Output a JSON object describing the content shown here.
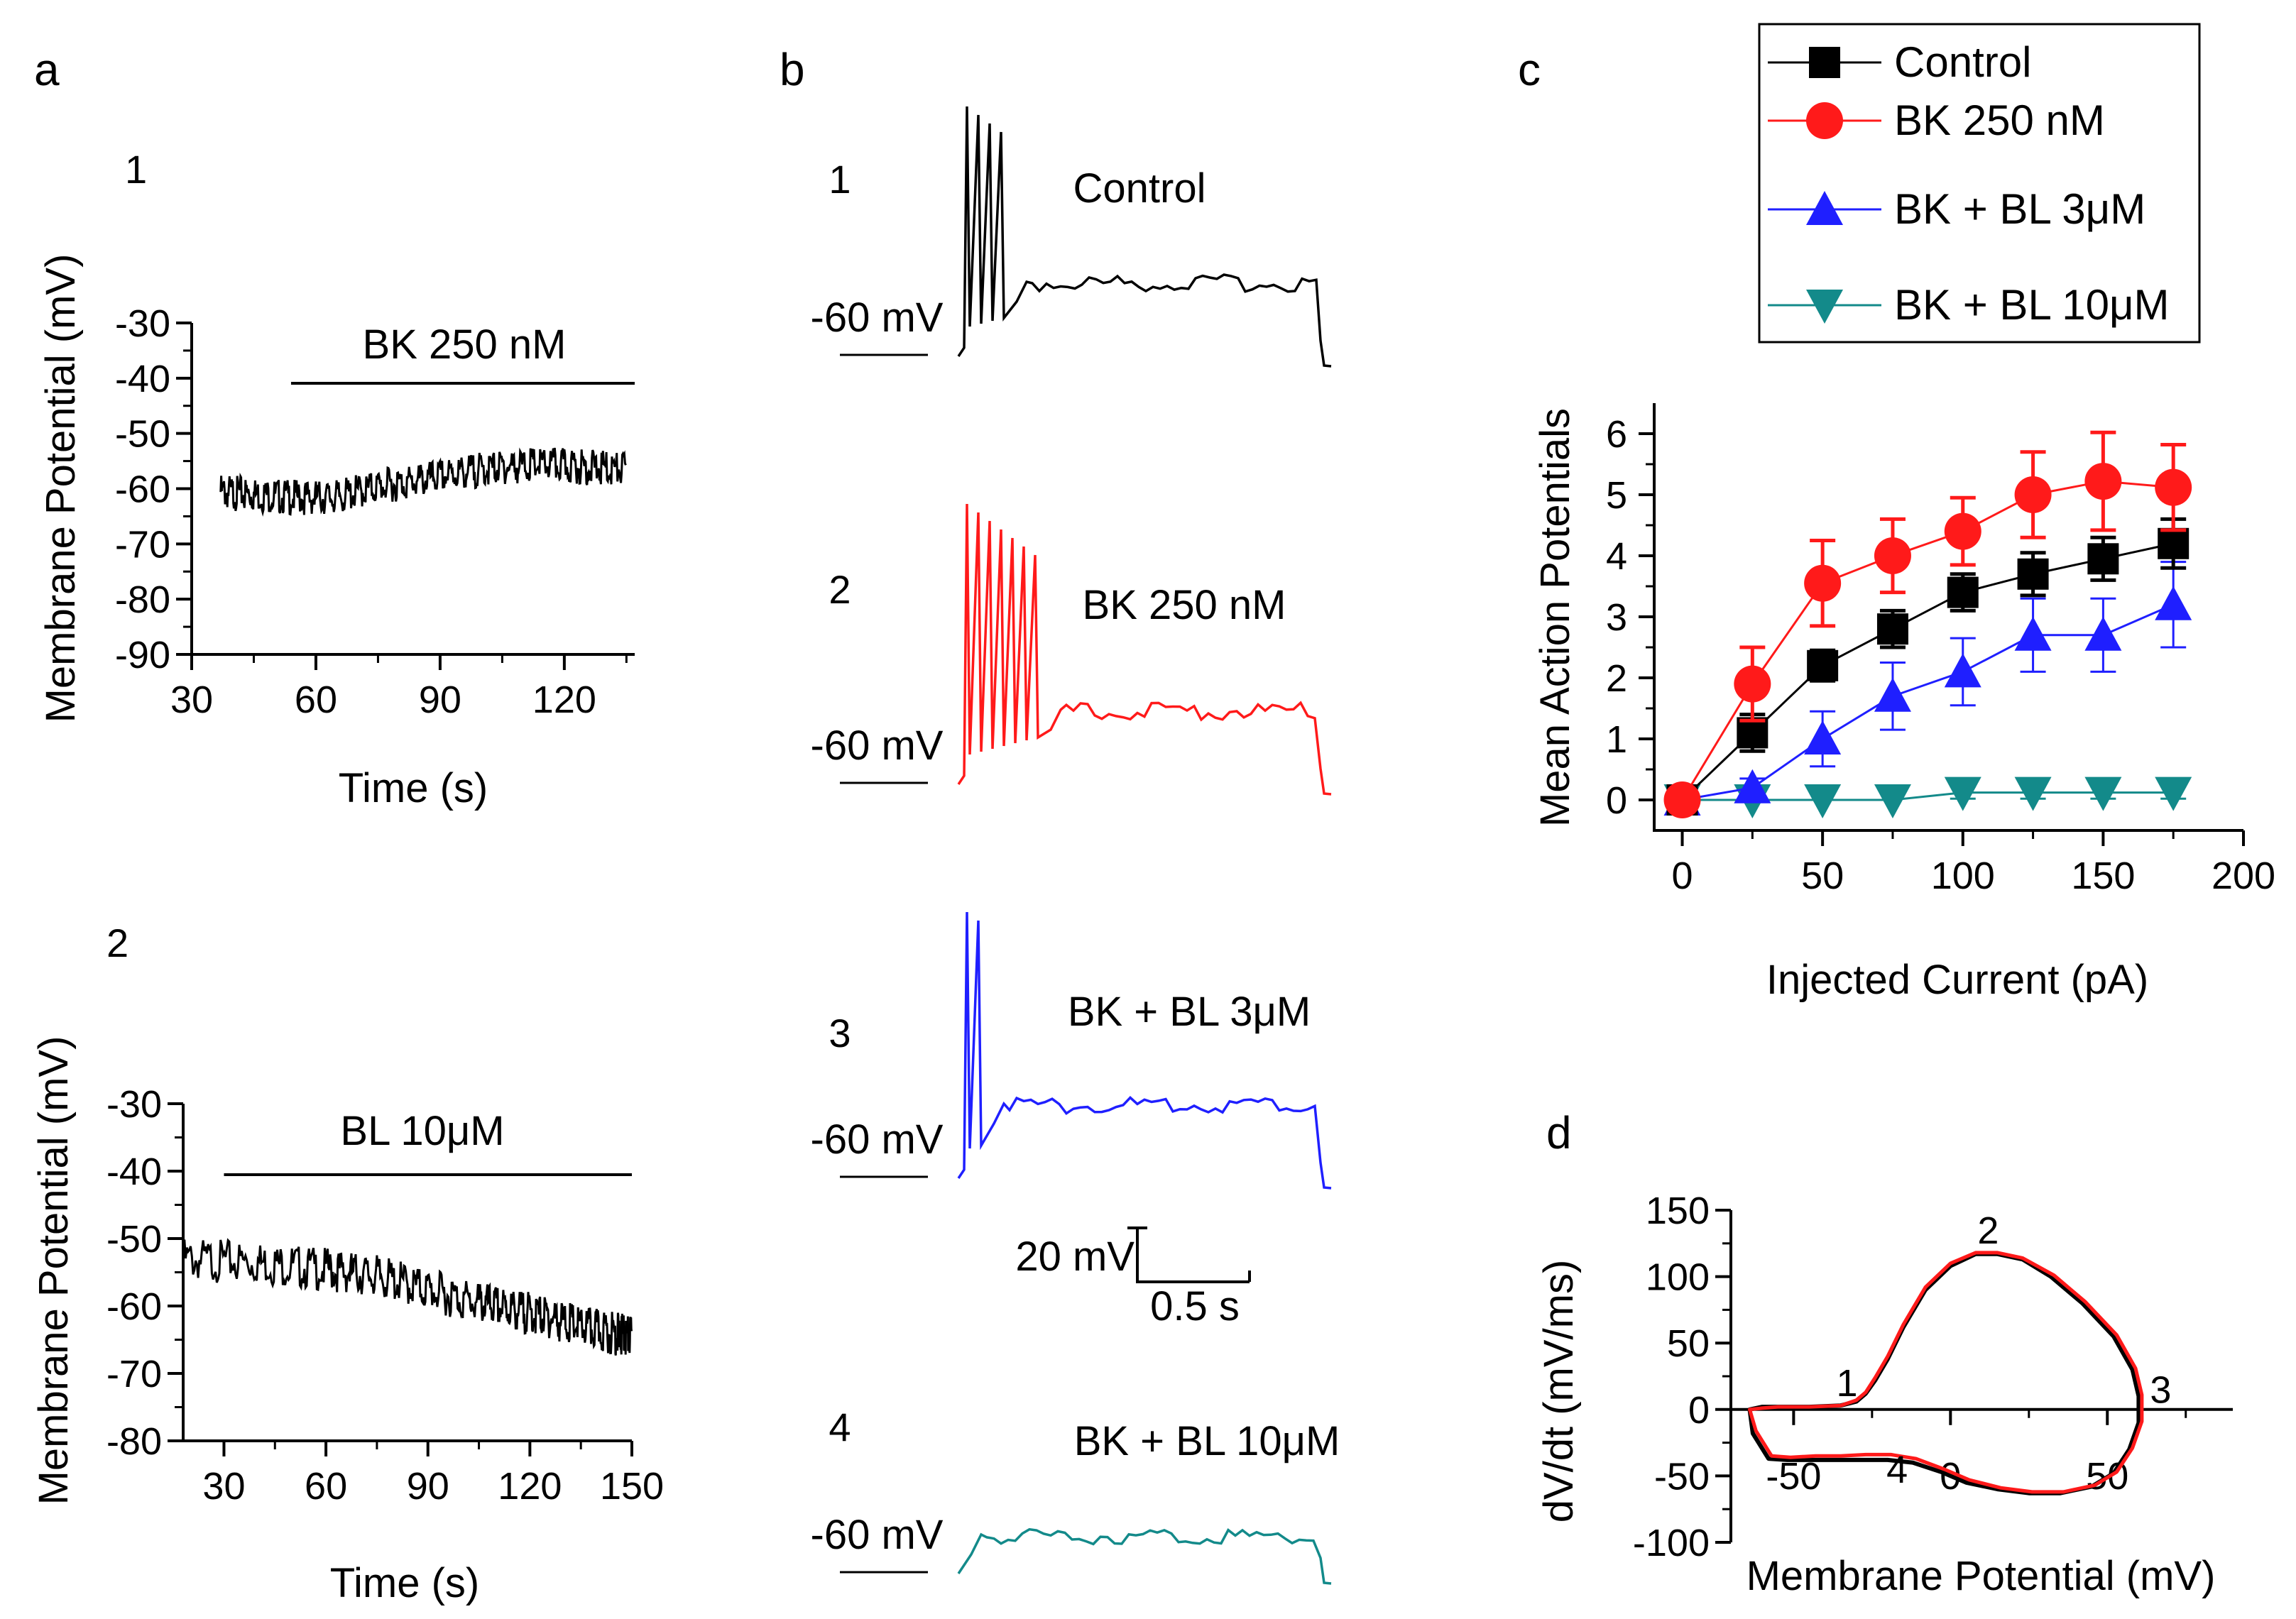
{
  "colors": {
    "control": "#000000",
    "bk250": "#ff1a1a",
    "bl3": "#1f1fff",
    "bl10": "#138a8a"
  },
  "chart_data": [
    {
      "id": "a1",
      "panel": "a",
      "sub": "1",
      "type": "line",
      "xlabel": "Time (s)",
      "ylabel": "Membrane Potential (mV)",
      "xlim": [
        30,
        137
      ],
      "ylim": [
        -90,
        -30
      ],
      "xticks": [
        "30",
        "60",
        "90",
        "120"
      ],
      "yticks": [
        "-30",
        "-40",
        "-50",
        "-60",
        "-70",
        "-80",
        "-90"
      ],
      "drug_bar": {
        "label": "BK 250 nM",
        "start": 54,
        "end": 137
      },
      "trace": {
        "x": [
          37,
          45,
          55,
          65,
          75,
          85,
          95,
          105,
          115,
          125,
          135
        ],
        "y": [
          -59,
          -59.5,
          -60,
          -60,
          -58,
          -57,
          -55.5,
          -54.5,
          -54,
          -54.5,
          -55
        ]
      }
    },
    {
      "id": "a2",
      "panel": "a",
      "sub": "2",
      "type": "line",
      "xlabel": "Time (s)",
      "ylabel": "Membrane Potential (mV)",
      "xlim": [
        18,
        150
      ],
      "ylim": [
        -80,
        -30
      ],
      "xticks": [
        "30",
        "60",
        "90",
        "120",
        "150"
      ],
      "yticks": [
        "-30",
        "-40",
        "-50",
        "-60",
        "-70",
        "-80"
      ],
      "drug_bar": {
        "label": "BL 10μM",
        "start": 30,
        "end": 150
      },
      "trace": {
        "x": [
          18,
          40,
          60,
          75,
          90,
          105,
          115,
          125,
          135,
          145,
          150
        ],
        "y": [
          -51.5,
          -52,
          -53,
          -54,
          -56,
          -58,
          -59,
          -60,
          -61.5,
          -62.5,
          -63
        ]
      }
    },
    {
      "id": "b",
      "panel": "b",
      "type": "traces",
      "traces": [
        {
          "num": "1",
          "label": "Control",
          "baseline": "-60 mV",
          "color_key": "control",
          "spikes": 4
        },
        {
          "num": "2",
          "label": "BK 250 nM",
          "baseline": "-60 mV",
          "color_key": "bk250",
          "spikes": 7
        },
        {
          "num": "3",
          "label": "BK + BL 3μM",
          "baseline": "-60 mV",
          "color_key": "bl3",
          "spikes": 2
        },
        {
          "num": "4",
          "label": "BK + BL 10μM",
          "baseline": "-60 mV",
          "color_key": "bl10",
          "spikes": 0
        }
      ],
      "scalebar": {
        "v": "20 mV",
        "t": "0.5 s"
      }
    },
    {
      "id": "c",
      "panel": "c",
      "type": "line",
      "xlabel": "Injected Current (pA)",
      "ylabel": "Mean Action Potentials",
      "xlim": [
        -10,
        200
      ],
      "ylim": [
        -0.5,
        6.5
      ],
      "xticks": [
        "0",
        "50",
        "100",
        "150",
        "200"
      ],
      "yticks": [
        "0",
        "1",
        "2",
        "3",
        "4",
        "5",
        "6"
      ],
      "x": [
        0,
        25,
        50,
        75,
        100,
        125,
        150,
        175
      ],
      "series": [
        {
          "name": "Control",
          "color_key": "control",
          "marker": "square",
          "values": [
            0,
            1.1,
            2.2,
            2.8,
            3.4,
            3.7,
            3.95,
            4.2
          ],
          "err": [
            0,
            0.3,
            0.25,
            0.3,
            0.3,
            0.35,
            0.35,
            0.4
          ]
        },
        {
          "name": "BK 250 nM",
          "color_key": "bk250",
          "marker": "circle",
          "values": [
            0,
            1.9,
            3.55,
            4.0,
            4.4,
            5.0,
            5.22,
            5.12
          ],
          "err": [
            0,
            0.6,
            0.7,
            0.6,
            0.55,
            0.7,
            0.8,
            0.7
          ]
        },
        {
          "name": "BK + BL 3μM",
          "color_key": "bl3",
          "marker": "triangle-up",
          "values": [
            0,
            0.2,
            1.0,
            1.7,
            2.1,
            2.7,
            2.7,
            3.2
          ],
          "err": [
            0,
            0.15,
            0.45,
            0.55,
            0.55,
            0.6,
            0.6,
            0.7
          ]
        },
        {
          "name": "BK + BL 10μM",
          "color_key": "bl10",
          "marker": "triangle-down",
          "values": [
            0,
            0,
            0,
            0,
            0.12,
            0.12,
            0.12,
            0.12
          ],
          "err": [
            0,
            0,
            0,
            0,
            0.1,
            0.1,
            0.1,
            0.1
          ]
        }
      ]
    },
    {
      "id": "d",
      "panel": "d",
      "type": "line",
      "xlabel": "Membrane Potential (mV)",
      "ylabel": "dV/dt (mV/ms)",
      "xlim": [
        -70,
        90
      ],
      "ylim": [
        -100,
        150
      ],
      "xticks": [
        "-50",
        "0",
        "50"
      ],
      "yticks": [
        "150",
        "100",
        "50",
        "0",
        "-50",
        "-100"
      ],
      "point_labels": [
        {
          "text": "1",
          "x": -33,
          "y": 10
        },
        {
          "text": "2",
          "x": 12,
          "y": 125
        },
        {
          "text": "3",
          "x": 67,
          "y": 5
        },
        {
          "text": "4",
          "x": -17,
          "y": -55
        }
      ],
      "series": [
        {
          "name": "Control",
          "color_key": "control",
          "x": [
            -64,
            -60,
            -55,
            -45,
            -35,
            -30,
            -27,
            -24,
            -20,
            -15,
            -8,
            0,
            8,
            15,
            23,
            32,
            42,
            52,
            58,
            60,
            60,
            57,
            52,
            45,
            35,
            25,
            15,
            5,
            -3,
            -12,
            -20,
            -28,
            -36,
            -44,
            -52,
            -58,
            -63,
            -64
          ],
          "y": [
            0,
            2,
            2,
            2,
            3,
            6,
            12,
            22,
            38,
            62,
            90,
            108,
            117,
            117,
            113,
            100,
            80,
            55,
            30,
            10,
            -10,
            -30,
            -48,
            -58,
            -63,
            -63,
            -60,
            -55,
            -47,
            -40,
            -38,
            -38,
            -38,
            -38,
            -38,
            -37,
            -18,
            0
          ]
        },
        {
          "name": "BK 250 nM",
          "color_key": "bk250",
          "x": [
            -64,
            -60,
            -55,
            -45,
            -35,
            -30,
            -27,
            -24,
            -20,
            -15,
            -8,
            0,
            8,
            15,
            23,
            33,
            43,
            53,
            59,
            61,
            61,
            58,
            53,
            46,
            36,
            26,
            16,
            6,
            -2,
            -11,
            -19,
            -27,
            -35,
            -43,
            -51,
            -57,
            -62,
            -64
          ],
          "y": [
            0,
            1,
            2,
            2,
            3,
            7,
            13,
            24,
            40,
            64,
            92,
            110,
            118,
            118,
            114,
            101,
            81,
            56,
            31,
            11,
            -9,
            -29,
            -47,
            -57,
            -62,
            -62,
            -59,
            -53,
            -45,
            -37,
            -34,
            -34,
            -35,
            -35,
            -36,
            -35,
            -16,
            0
          ]
        }
      ]
    }
  ],
  "legend": [
    {
      "label": "Control",
      "color_key": "control",
      "marker": "square"
    },
    {
      "label": "BK 250 nM",
      "color_key": "bk250",
      "marker": "circle"
    },
    {
      "label": "BK + BL 3μM",
      "color_key": "bl3",
      "marker": "triangle-up"
    },
    {
      "label": "BK + BL 10μM",
      "color_key": "bl10",
      "marker": "triangle-down"
    }
  ]
}
